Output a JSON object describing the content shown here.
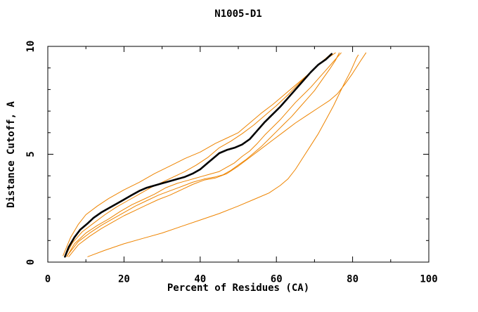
{
  "chart_data": {
    "type": "line",
    "title": "N1005-D1",
    "xlabel": "Percent of Residues (CA)",
    "ylabel": "Distance Cutoff, A",
    "xlim": [
      0,
      100
    ],
    "ylim": [
      0,
      10
    ],
    "x_major_ticks": [
      0,
      20,
      40,
      60,
      80,
      100
    ],
    "x_minor_step": 10,
    "y_major_ticks": [
      0,
      5,
      10
    ],
    "y_minor_step": 1,
    "grid": false,
    "legend_position": "none",
    "colors": {
      "model_orange": "#ee8400",
      "reference_black": "#000000",
      "frame": "#000000"
    },
    "series": [
      {
        "name": "orange-line-1",
        "color": "#ee8400",
        "width": 1,
        "points": [
          [
            4,
            0.3
          ],
          [
            6,
            1.15
          ],
          [
            8,
            1.75
          ],
          [
            10,
            2.2
          ],
          [
            13,
            2.6
          ],
          [
            16,
            2.95
          ],
          [
            20,
            3.35
          ],
          [
            24,
            3.7
          ],
          [
            28,
            4.1
          ],
          [
            32,
            4.45
          ],
          [
            36,
            4.8
          ],
          [
            40,
            5.1
          ],
          [
            44,
            5.5
          ],
          [
            47,
            5.75
          ],
          [
            50,
            6.0
          ],
          [
            53,
            6.45
          ],
          [
            56,
            6.9
          ],
          [
            59,
            7.3
          ],
          [
            62,
            7.75
          ],
          [
            65,
            8.2
          ],
          [
            68,
            8.65
          ],
          [
            71,
            9.15
          ],
          [
            73,
            9.4
          ],
          [
            75.5,
            9.7
          ]
        ]
      },
      {
        "name": "orange-line-2",
        "color": "#ee8400",
        "width": 1,
        "points": [
          [
            4.5,
            0.25
          ],
          [
            6.5,
            0.9
          ],
          [
            9,
            1.4
          ],
          [
            12,
            1.8
          ],
          [
            15,
            2.2
          ],
          [
            18,
            2.55
          ],
          [
            21,
            2.85
          ],
          [
            24,
            3.15
          ],
          [
            27,
            3.45
          ],
          [
            30,
            3.7
          ],
          [
            33,
            3.95
          ],
          [
            36,
            4.2
          ],
          [
            39,
            4.5
          ],
          [
            42,
            4.85
          ],
          [
            45,
            5.3
          ],
          [
            48,
            5.6
          ],
          [
            51,
            5.95
          ],
          [
            54,
            6.35
          ],
          [
            57,
            6.8
          ],
          [
            60,
            7.25
          ],
          [
            63,
            7.75
          ],
          [
            66,
            8.3
          ],
          [
            69,
            8.8
          ],
          [
            72,
            9.3
          ],
          [
            74,
            9.6
          ]
        ]
      },
      {
        "name": "orange-line-3",
        "color": "#ee8400",
        "width": 1,
        "points": [
          [
            5,
            0.25
          ],
          [
            7,
            0.85
          ],
          [
            10,
            1.35
          ],
          [
            13,
            1.7
          ],
          [
            16,
            2.0
          ],
          [
            19,
            2.35
          ],
          [
            22,
            2.65
          ],
          [
            25,
            2.9
          ],
          [
            28,
            3.15
          ],
          [
            31,
            3.45
          ],
          [
            34,
            3.65
          ],
          [
            37,
            3.8
          ],
          [
            40,
            3.95
          ],
          [
            43,
            4.1
          ],
          [
            45,
            4.2
          ],
          [
            47,
            4.4
          ],
          [
            49,
            4.6
          ],
          [
            51,
            4.9
          ],
          [
            53,
            5.15
          ],
          [
            55,
            5.5
          ],
          [
            57,
            5.9
          ],
          [
            59,
            6.25
          ],
          [
            61,
            6.6
          ],
          [
            63,
            7.0
          ],
          [
            65,
            7.4
          ],
          [
            67,
            7.75
          ],
          [
            69,
            8.1
          ],
          [
            71,
            8.5
          ],
          [
            73,
            8.9
          ],
          [
            75,
            9.3
          ],
          [
            77,
            9.7
          ]
        ]
      },
      {
        "name": "orange-line-4",
        "color": "#ee8400",
        "width": 1,
        "points": [
          [
            5,
            0.28
          ],
          [
            8,
            0.95
          ],
          [
            11,
            1.35
          ],
          [
            14,
            1.7
          ],
          [
            17,
            2.0
          ],
          [
            20,
            2.3
          ],
          [
            23,
            2.6
          ],
          [
            26,
            2.85
          ],
          [
            29,
            3.1
          ],
          [
            32,
            3.3
          ],
          [
            35,
            3.5
          ],
          [
            38,
            3.7
          ],
          [
            41,
            3.85
          ],
          [
            44,
            3.95
          ],
          [
            46,
            4.05
          ],
          [
            48,
            4.25
          ],
          [
            50,
            4.5
          ],
          [
            52,
            4.75
          ],
          [
            54,
            5.05
          ],
          [
            56,
            5.35
          ],
          [
            58,
            5.7
          ],
          [
            60,
            6.05
          ],
          [
            62,
            6.4
          ],
          [
            64,
            6.75
          ],
          [
            66,
            7.15
          ],
          [
            68,
            7.55
          ],
          [
            70,
            7.95
          ],
          [
            72,
            8.45
          ],
          [
            74,
            8.95
          ],
          [
            75.5,
            9.35
          ],
          [
            76.5,
            9.7
          ]
        ]
      },
      {
        "name": "orange-line-5",
        "color": "#ee8400",
        "width": 1,
        "points": [
          [
            5.5,
            0.25
          ],
          [
            8,
            0.8
          ],
          [
            11,
            1.2
          ],
          [
            14,
            1.55
          ],
          [
            17,
            1.85
          ],
          [
            20,
            2.15
          ],
          [
            23,
            2.4
          ],
          [
            26,
            2.65
          ],
          [
            29,
            2.9
          ],
          [
            32,
            3.1
          ],
          [
            35,
            3.35
          ],
          [
            38,
            3.6
          ],
          [
            41,
            3.8
          ],
          [
            44,
            3.9
          ],
          [
            47,
            4.1
          ],
          [
            50,
            4.45
          ],
          [
            53,
            4.85
          ],
          [
            56,
            5.25
          ],
          [
            59,
            5.65
          ],
          [
            62,
            6.05
          ],
          [
            65,
            6.45
          ],
          [
            68,
            6.8
          ],
          [
            71,
            7.15
          ],
          [
            74,
            7.5
          ],
          [
            76,
            7.8
          ],
          [
            78,
            8.25
          ],
          [
            80,
            8.75
          ],
          [
            82,
            9.3
          ],
          [
            83.5,
            9.7
          ]
        ]
      },
      {
        "name": "orange-line-6",
        "color": "#ee8400",
        "width": 1,
        "points": [
          [
            10.5,
            0.25
          ],
          [
            15,
            0.55
          ],
          [
            20,
            0.85
          ],
          [
            25,
            1.1
          ],
          [
            30,
            1.35
          ],
          [
            35,
            1.65
          ],
          [
            40,
            1.95
          ],
          [
            45,
            2.25
          ],
          [
            50,
            2.6
          ],
          [
            54,
            2.9
          ],
          [
            58,
            3.2
          ],
          [
            61,
            3.55
          ],
          [
            63,
            3.85
          ],
          [
            65,
            4.3
          ],
          [
            67,
            4.85
          ],
          [
            69,
            5.4
          ],
          [
            71,
            5.95
          ],
          [
            73,
            6.6
          ],
          [
            75,
            7.25
          ],
          [
            76.5,
            7.8
          ],
          [
            78,
            8.35
          ],
          [
            79.5,
            8.85
          ],
          [
            81,
            9.45
          ],
          [
            81.5,
            9.6
          ]
        ]
      },
      {
        "name": "black-bold-line",
        "color": "#000000",
        "width": 2.6,
        "points": [
          [
            4.5,
            0.25
          ],
          [
            5.5,
            0.7
          ],
          [
            7,
            1.15
          ],
          [
            8.5,
            1.5
          ],
          [
            10.5,
            1.8
          ],
          [
            12,
            2.05
          ],
          [
            14,
            2.3
          ],
          [
            16,
            2.5
          ],
          [
            18,
            2.7
          ],
          [
            20,
            2.9
          ],
          [
            22,
            3.1
          ],
          [
            24,
            3.3
          ],
          [
            26,
            3.45
          ],
          [
            28,
            3.55
          ],
          [
            30,
            3.65
          ],
          [
            32,
            3.75
          ],
          [
            34,
            3.85
          ],
          [
            36,
            3.95
          ],
          [
            38,
            4.1
          ],
          [
            40,
            4.3
          ],
          [
            42,
            4.6
          ],
          [
            44,
            4.9
          ],
          [
            45,
            5.05
          ],
          [
            47,
            5.2
          ],
          [
            49,
            5.3
          ],
          [
            51,
            5.45
          ],
          [
            53,
            5.7
          ],
          [
            55,
            6.1
          ],
          [
            57,
            6.5
          ],
          [
            59,
            6.85
          ],
          [
            61,
            7.2
          ],
          [
            63,
            7.6
          ],
          [
            65,
            8.0
          ],
          [
            67,
            8.4
          ],
          [
            69,
            8.8
          ],
          [
            71,
            9.15
          ],
          [
            73,
            9.4
          ],
          [
            74.5,
            9.65
          ]
        ]
      }
    ]
  }
}
